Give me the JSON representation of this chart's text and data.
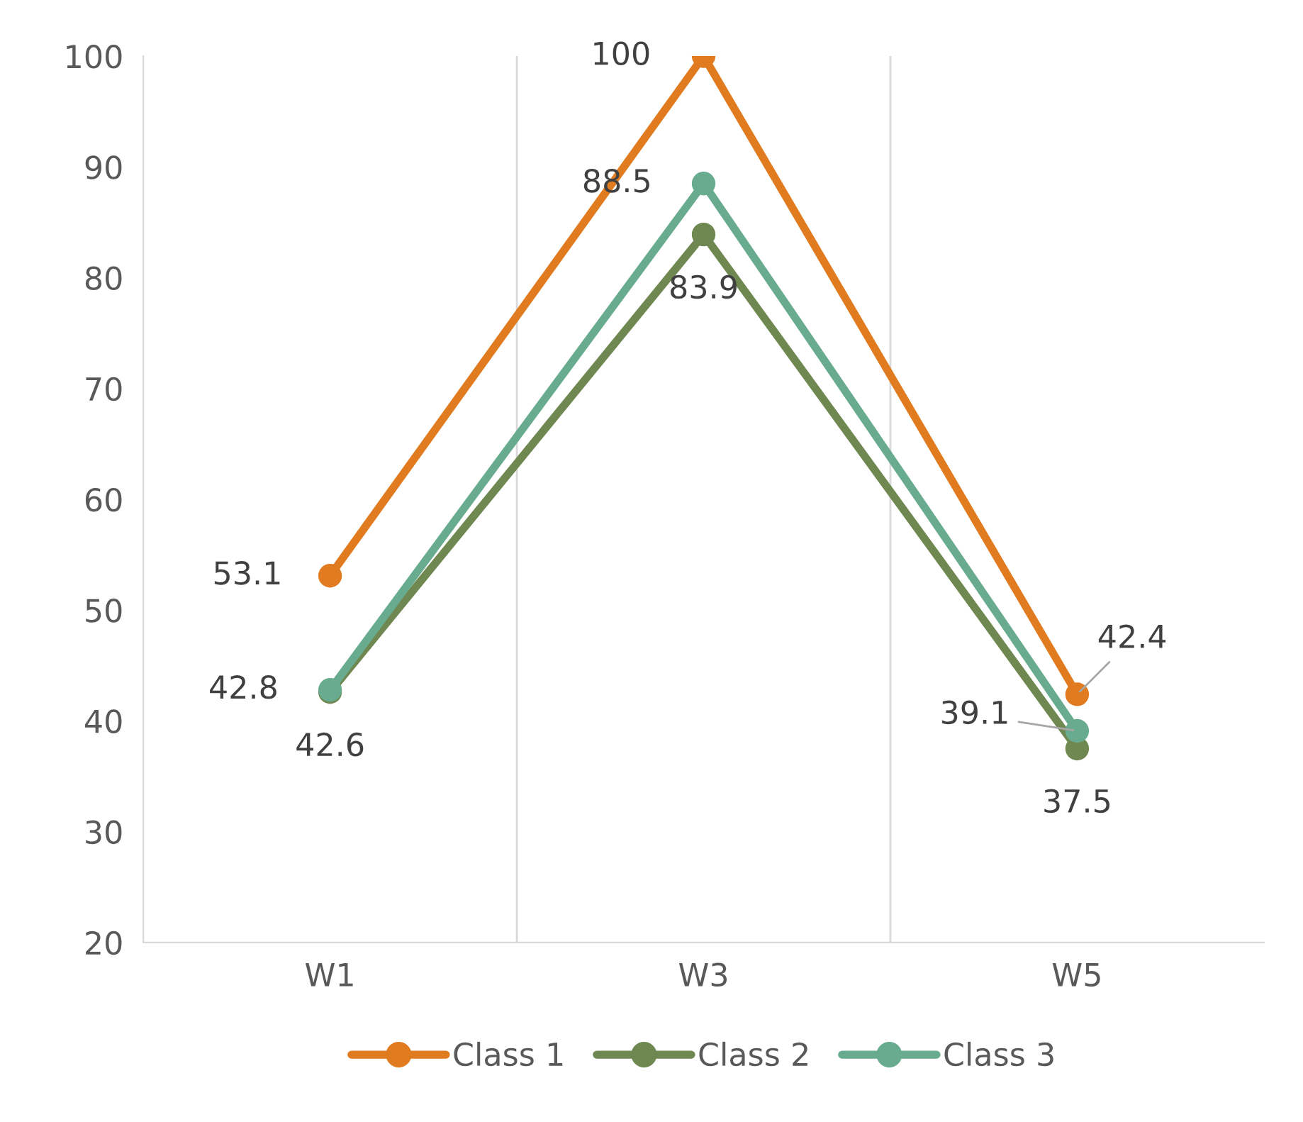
{
  "chart_data": {
    "type": "line",
    "categories": [
      "W1",
      "W3",
      "W5"
    ],
    "series": [
      {
        "name": "Class 1",
        "color": "#e07b20",
        "values": [
          53.1,
          100,
          42.4
        ]
      },
      {
        "name": "Class 2",
        "color": "#6f8750",
        "values": [
          42.6,
          83.9,
          37.5
        ]
      },
      {
        "name": "Class 3",
        "color": "#68ab8f",
        "values": [
          42.8,
          88.5,
          39.1
        ]
      }
    ],
    "ylim": [
      20,
      100
    ],
    "yticks": [
      20,
      30,
      40,
      50,
      60,
      70,
      80,
      90,
      100
    ],
    "grid": "x",
    "legend": "bottom",
    "marker": "circle",
    "line_style": "solid",
    "data_labels": true
  }
}
